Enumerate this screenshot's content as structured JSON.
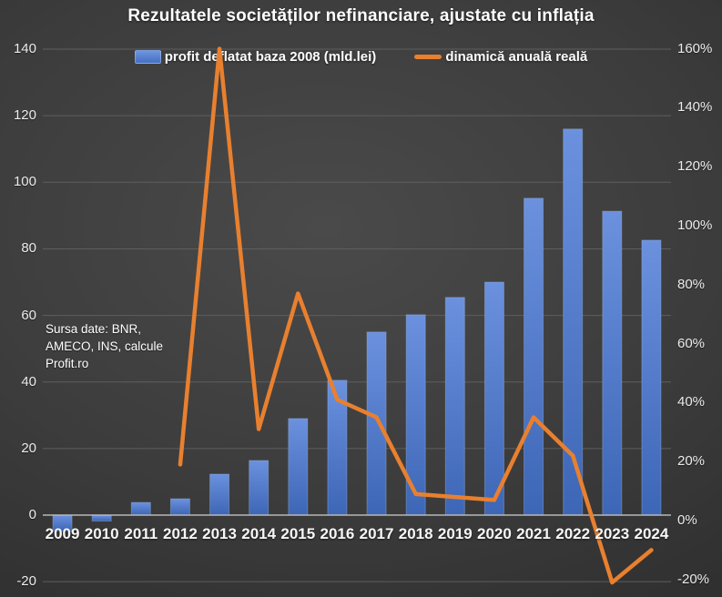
{
  "title": "Rezultatele societăților nefinanciare, ajustate cu inflația",
  "source": {
    "lines": [
      "Sursa date: BNR,",
      "AMECO, INS, calcule",
      "Profit.ro"
    ]
  },
  "colors": {
    "bar_top": "#6b91de",
    "bar_bottom": "#3d66b6",
    "bar_border": "#9db8e6",
    "line": "#e8802f",
    "gridline": "#5e5e5e",
    "axis_line": "#b8b8b8",
    "text": "#f2f2f2"
  },
  "chart_data": {
    "type": "bar",
    "subtype": "combo bar + line, dual axis",
    "title": "Rezultatele societăților nefinanciare, ajustate cu inflația",
    "categories": [
      "2009",
      "2010",
      "2011",
      "2012",
      "2013",
      "2014",
      "2015",
      "2016",
      "2017",
      "2018",
      "2019",
      "2020",
      "2021",
      "2022",
      "2023",
      "2024"
    ],
    "series": [
      {
        "name": "profit deflatat baza 2008 (mld.lei)",
        "type": "bar",
        "axis": "left",
        "values": [
          -4.8,
          -1.8,
          3.8,
          4.9,
          12.3,
          16.4,
          29,
          40.5,
          55,
          60.2,
          65.4,
          70,
          95.2,
          116,
          91.3,
          82.6
        ]
      },
      {
        "name": "dinamică anuală reală",
        "type": "line",
        "axis": "right",
        "values": [
          null,
          null,
          null,
          19,
          160,
          31,
          77,
          41,
          35,
          9,
          8,
          7,
          35,
          22,
          -21,
          -10
        ]
      }
    ],
    "left_axis": {
      "min": -20,
      "max": 140,
      "step": 20,
      "ticks": [
        140,
        120,
        100,
        80,
        60,
        40,
        20,
        0,
        -20
      ],
      "unit": ""
    },
    "right_axis": {
      "min": -20,
      "max": 160,
      "step": 20,
      "ticks": [
        160,
        140,
        120,
        100,
        80,
        60,
        40,
        20,
        0,
        -20
      ],
      "unit": "%"
    },
    "grid": true,
    "legend_position": "top"
  }
}
